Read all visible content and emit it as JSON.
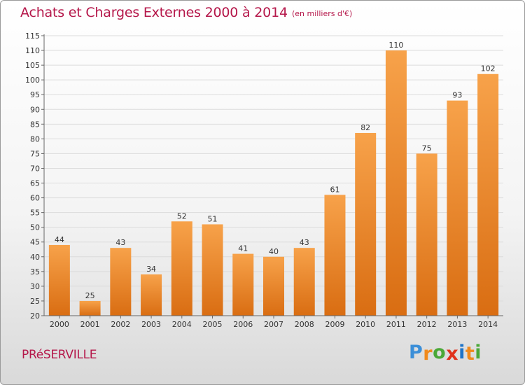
{
  "title": "Achats et Charges Externes 2000 à 2014",
  "subtitle": "(en milliers d'€)",
  "commune": "PRéSERVILLE",
  "logo": {
    "letters": [
      "P",
      "r",
      "o",
      "x",
      "i",
      "t",
      "i"
    ],
    "colors": [
      "#3c8fd8",
      "#f08a1c",
      "#4aa837",
      "#e0311c",
      "#1e74c8",
      "#f08a1c",
      "#4aa837"
    ]
  },
  "colors": {
    "title": "#b5174a",
    "bar_light": "#f7a24a",
    "bar_dark": "#d96d12",
    "grid": "#dcdcdc",
    "axis": "#666666",
    "text": "#333333"
  },
  "chart_data": {
    "type": "bar",
    "categories": [
      "2000",
      "2001",
      "2002",
      "2003",
      "2004",
      "2005",
      "2006",
      "2007",
      "2008",
      "2009",
      "2010",
      "2011",
      "2012",
      "2013",
      "2014"
    ],
    "values": [
      44,
      25,
      43,
      34,
      52,
      51,
      41,
      40,
      43,
      61,
      82,
      110,
      75,
      93,
      102
    ],
    "title": "Achats et Charges Externes 2000 à 2014",
    "xlabel": "",
    "ylabel": "",
    "ylim": [
      20,
      115
    ],
    "yticks": [
      20,
      25,
      30,
      35,
      40,
      45,
      50,
      55,
      60,
      65,
      70,
      75,
      80,
      85,
      90,
      95,
      100,
      105,
      110,
      115
    ],
    "grid": true,
    "data_labels": true
  }
}
